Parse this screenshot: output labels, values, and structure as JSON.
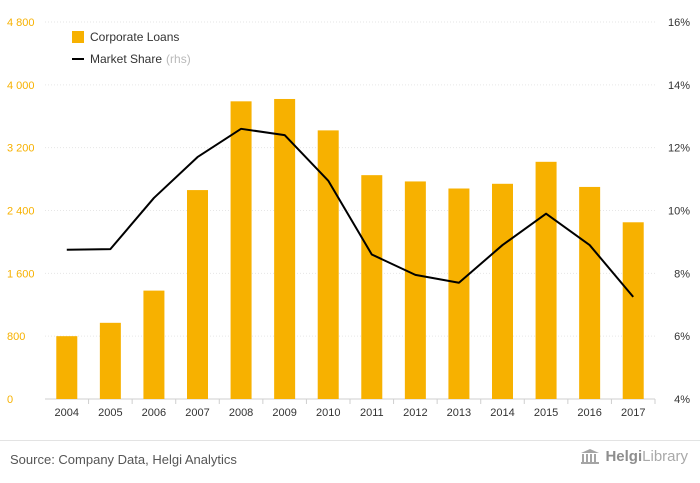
{
  "chart_data": {
    "type": "bar",
    "categories": [
      "2004",
      "2005",
      "2006",
      "2007",
      "2008",
      "2009",
      "2010",
      "2011",
      "2012",
      "2013",
      "2014",
      "2015",
      "2016",
      "2017"
    ],
    "series": [
      {
        "name": "Corporate Loans",
        "type": "bar",
        "axis": "left",
        "color": "#f7b100",
        "values": [
          800,
          970,
          1380,
          2660,
          3790,
          3820,
          3420,
          2850,
          2770,
          2680,
          2740,
          3020,
          2700,
          2250
        ]
      },
      {
        "name": "Market Share",
        "type": "line",
        "axis": "right",
        "color": "#000000",
        "values": [
          8.75,
          8.77,
          10.4,
          11.7,
          12.6,
          12.4,
          10.95,
          8.6,
          7.95,
          7.7,
          8.9,
          9.9,
          8.9,
          7.25
        ]
      }
    ],
    "ylim_left": [
      0,
      4800
    ],
    "ylim_right": [
      4,
      16
    ],
    "left_ticks": [
      0,
      800,
      1600,
      2400,
      3200,
      4000,
      4800
    ],
    "left_tick_labels": [
      "0",
      "800",
      "1 600",
      "2 400",
      "3 200",
      "4 000",
      "4 800"
    ],
    "right_ticks": [
      4,
      6,
      8,
      10,
      12,
      14,
      16
    ],
    "right_tick_labels": [
      "4%",
      "6%",
      "8%",
      "10%",
      "12%",
      "14%",
      "16%"
    ],
    "left_axis_color": "#f7b100",
    "grid": true,
    "legend_position": "top-left",
    "legend_note": "(rhs)",
    "xlabel": "",
    "ylabel": ""
  },
  "footer": {
    "source": "Source: Company Data, Helgi Analytics",
    "brand_a": "Helgi",
    "brand_b": "Library"
  }
}
